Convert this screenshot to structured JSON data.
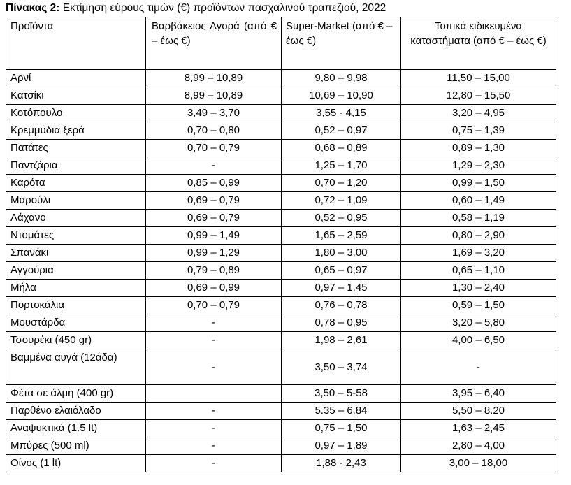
{
  "caption": {
    "label": "Πίνακας 2:",
    "text": " Εκτίμηση εύρους τιμών (€) προϊόντων πασχαλινού τραπεζιού, 2022"
  },
  "table": {
    "headers": [
      "Προϊόντα",
      "Βαρβάκειος    Αγορά (από € –  έως €)",
      "Super-Market (από € –  έως €)",
      "Τοπικά ειδικευμένα καταστήματα (από € – έως €)"
    ],
    "rows": [
      [
        "Αρνί",
        "8,99 – 10,89",
        "9,80 – 9,98",
        "11,50 – 15,00"
      ],
      [
        "Κατσίκι",
        "8,99 – 10,89",
        "10,69 – 10,90",
        "12,80 – 15,50"
      ],
      [
        "Κοτόπουλο",
        "3,49 – 3,70",
        "3,55 - 4,15",
        "3,20 – 4,95"
      ],
      [
        "Κρεμμύδια ξερά",
        "0,70 – 0,80",
        "0,52 – 0,97",
        "0,75 – 1,39"
      ],
      [
        "Πατάτες",
        "0,70 – 0,79",
        "0,68 – 0,89",
        "0,89 – 1,30"
      ],
      [
        "Παντζάρια",
        "-",
        "1,25 – 1,70",
        "1,29 – 2,30"
      ],
      [
        "Καρότα",
        "0,85 – 0,99",
        "0,70 – 1,20",
        "0,99 – 1,50"
      ],
      [
        "Μαρούλι",
        "0,69 – 0,79",
        "0,72 – 1,09",
        "0,60 – 1,49"
      ],
      [
        "Λάχανο",
        "0,69 – 0,79",
        "0,52 – 0,95",
        "0,58 – 1,19"
      ],
      [
        "Ντομάτες",
        "0,99 – 1,49",
        "1,65 – 2,59",
        "0,80 – 2,90"
      ],
      [
        "Σπανάκι",
        "0,99 – 1,29",
        "1,80 – 3,00",
        "1,69 – 3,20"
      ],
      [
        "Αγγούρια",
        "0,79 – 0,89",
        "0,65 – 0,97",
        "0,65 – 1,10"
      ],
      [
        "Μήλα",
        "0,69 – 0,99",
        "0,97 – 1,45",
        "1,30 – 2,40"
      ],
      [
        "Πορτοκάλια",
        "0,70 – 0,79",
        "0,76 – 0,78",
        "0,59 – 1,50"
      ],
      [
        "Μουστάρδα",
        "-",
        "0,78 – 0,95",
        "3,20 – 5,80"
      ],
      [
        "Τσουρέκι (450 gr)",
        "-",
        "1,98 – 2,61",
        "4,00 – 6,50"
      ],
      [
        "Βαμμένα αυγά (12άδα)",
        "-",
        "3,50 – 3,74",
        "-"
      ],
      [
        "Φέτα σε άλμη (400 gr)",
        "",
        "3,50 – 5-58",
        "3,95 – 6,40"
      ],
      [
        "Παρθένο ελαιόλαδο",
        "-",
        "5.35 – 6,84",
        "5,50 – 8.20"
      ],
      [
        "Αναψυκτικά (1.5 lt)",
        "-",
        "0,75 – 1,50",
        "1,63 – 2,45"
      ],
      [
        "Μπύρες (500 ml)",
        "-",
        "0,97 – 1,89",
        "2,80 – 4,00"
      ],
      [
        "Οίνος (1 lt)",
        "-",
        "1,88 - 2,43",
        "3,00 – 18,00"
      ]
    ]
  }
}
